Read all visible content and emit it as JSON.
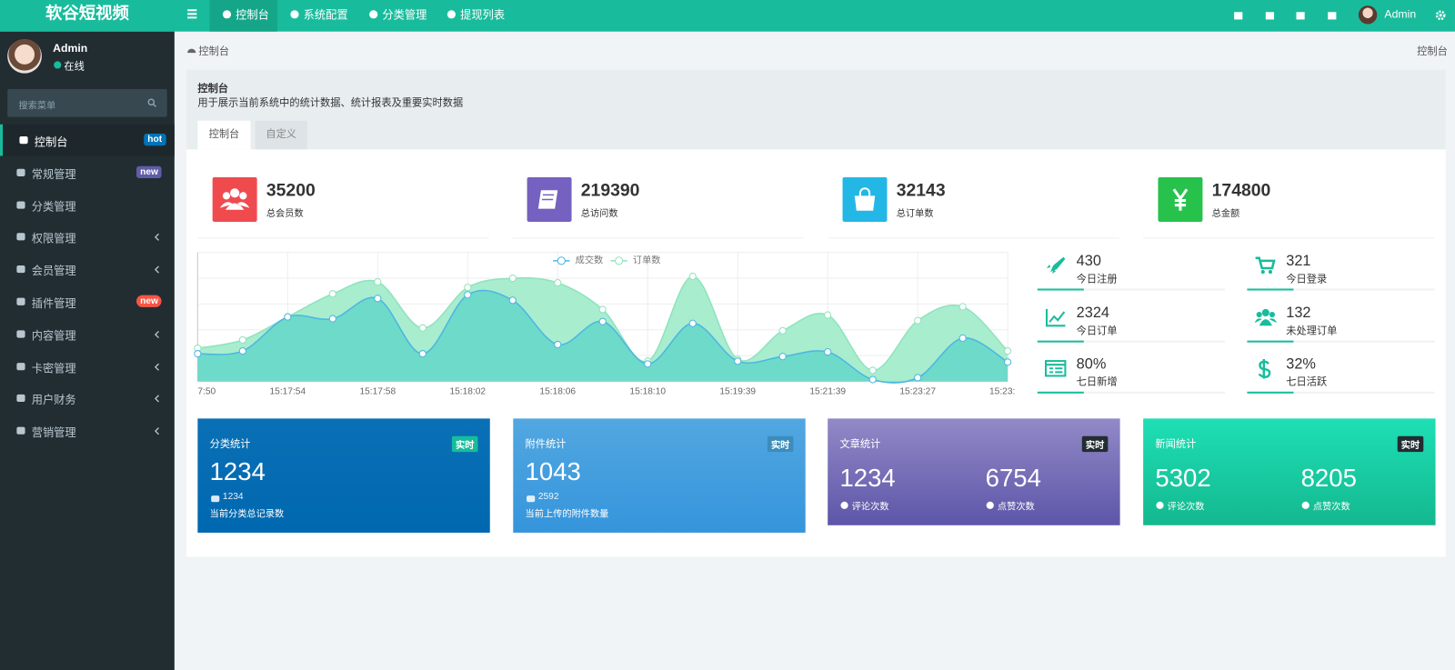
{
  "header": {
    "brand": "软谷短视频",
    "nav": [
      "控制台",
      "系统配置",
      "分类管理",
      "提现列表"
    ],
    "user": "Admin"
  },
  "sidebar": {
    "user": "Admin",
    "status": "在线",
    "search_placeholder": "搜索菜单",
    "menu": [
      {
        "label": "控制台",
        "badge": "hot"
      },
      {
        "label": "常规管理",
        "badge": "new"
      },
      {
        "label": "分类管理"
      },
      {
        "label": "权限管理"
      },
      {
        "label": "会员管理"
      },
      {
        "label": "插件管理",
        "badge": "new"
      },
      {
        "label": "内容管理"
      },
      {
        "label": "卡密管理"
      },
      {
        "label": "用户财务"
      },
      {
        "label": "营销管理"
      }
    ]
  },
  "breadcrumb": {
    "left": "控制台",
    "right": "控制台"
  },
  "panel": {
    "title": "控制台",
    "description": "用于展示当前系统中的统计数据、统计报表及重要实时数据",
    "tabs": [
      "控制台",
      "自定义"
    ]
  },
  "stats": [
    {
      "value": 35200,
      "label": "总会员数"
    },
    {
      "value": 219390,
      "label": "总访问数"
    },
    {
      "value": 32143,
      "label": "总订单数"
    },
    {
      "value": 174800,
      "label": "总金额"
    }
  ],
  "chart_data": {
    "type": "area",
    "categories": [
      "7:50",
      null,
      "15:17:54",
      null,
      "15:17:58",
      null,
      "15:18:02",
      null,
      "15:18:06",
      null,
      "15:18:10",
      null,
      "15:19:39",
      null,
      "15:21:39",
      null,
      "15:23:27",
      null,
      "15:23:"
    ],
    "series": [
      {
        "name": "成交数",
        "color": "#4cb6e4",
        "fill": "#6ad9c8",
        "values": [
          30,
          33,
          70,
          68,
          90,
          30,
          94,
          88,
          40,
          65,
          19,
          63,
          22,
          27,
          32,
          2,
          4,
          47,
          21
        ]
      },
      {
        "name": "订单数",
        "color": "#8fe3bf",
        "fill": "#a3ecca",
        "values": [
          36,
          45,
          70,
          95,
          108,
          58,
          102,
          112,
          107,
          78,
          22,
          114,
          24,
          55,
          72,
          12,
          66,
          81,
          33
        ]
      }
    ],
    "ylim": [
      0,
      140
    ],
    "grid": true,
    "legend": "top"
  },
  "mini_stats": [
    {
      "value": 430,
      "label": "今日注册"
    },
    {
      "value": 321,
      "label": "今日登录"
    },
    {
      "value": 2324,
      "label": "今日订单"
    },
    {
      "value": 132,
      "label": "未处理订单"
    },
    {
      "value": "80%",
      "label": "七日新增"
    },
    {
      "value": "32%",
      "label": "七日活跃"
    }
  ],
  "cards": [
    {
      "title": "分类统计",
      "badge": "实时",
      "value": 1234,
      "sub_value": 1234,
      "description": "当前分类总记录数"
    },
    {
      "title": "附件统计",
      "badge": "实时",
      "value": 1043,
      "sub_value": 2592,
      "description": "当前上传的附件数量"
    },
    {
      "title": "文章统计",
      "badge": "实时",
      "items": [
        {
          "value": 1234,
          "label": "评论次数"
        },
        {
          "value": 6754,
          "label": "点赞次数"
        }
      ]
    },
    {
      "title": "新闻统计",
      "badge": "实时",
      "items": [
        {
          "value": 5302,
          "label": "评论次数"
        },
        {
          "value": 8205,
          "label": "点赞次数"
        }
      ]
    }
  ]
}
